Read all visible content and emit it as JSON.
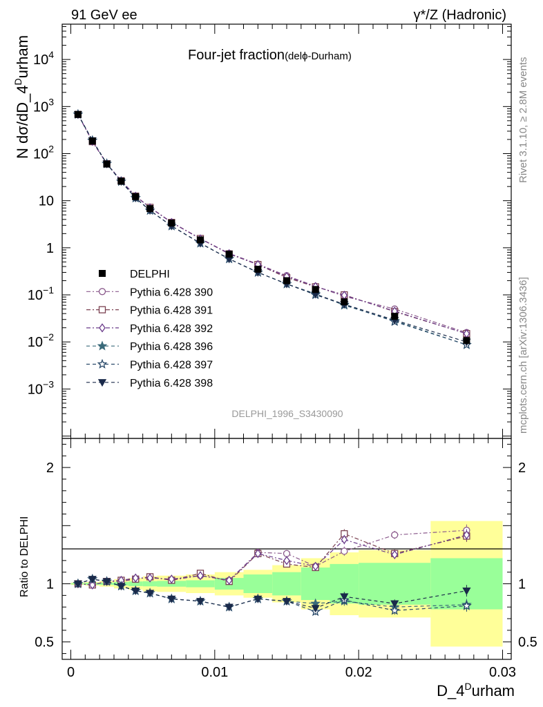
{
  "header": {
    "left_label": "91 GeV ee",
    "right_label": "γ*/Z (Hadronic)"
  },
  "side_labels": {
    "rivet": "Rivet 3.1.10, ≥ 2.8M events",
    "mcplots": "mcplots.cern.ch [arXiv:1306.3436]"
  },
  "analysis_id": "DELPHI_1996_S3430090",
  "chart_data": [
    {
      "panel": "main",
      "type": "scatter",
      "title": "Four-jet fraction",
      "title_suffix": "(delϕ-Durham)",
      "ylabel_main": "N dσ/dD_4",
      "ylabel_sup": "D",
      "ylabel_end": "urham",
      "xlabel_main": "D_4",
      "xlabel_sup": "D",
      "xlabel_end": "urham",
      "x_range": [
        -0.0006,
        0.0306
      ],
      "y_range_log10": [
        -4.05,
        4.75
      ],
      "y_scale": "log",
      "y_tick_labels": [
        {
          "value": 10000,
          "base": "10",
          "exp": "4"
        },
        {
          "value": 1000,
          "base": "10",
          "exp": "3"
        },
        {
          "value": 100,
          "base": "10",
          "exp": "2"
        },
        {
          "value": 10,
          "base": "10",
          "exp": ""
        },
        {
          "value": 1,
          "base": "1",
          "exp": ""
        },
        {
          "value": 0.1,
          "base": "10",
          "exp": "−1"
        },
        {
          "value": 0.01,
          "base": "10",
          "exp": "−2"
        },
        {
          "value": 0.001,
          "base": "10",
          "exp": "−3"
        }
      ],
      "x": [
        0.0005,
        0.0015,
        0.0025,
        0.0035,
        0.0045,
        0.0055,
        0.007,
        0.009,
        0.011,
        0.013,
        0.015,
        0.017,
        0.019,
        0.0225,
        0.0275
      ],
      "data": {
        "name": "DELPHI",
        "values": [
          680,
          185,
          60,
          26,
          12.2,
          6.8,
          3.35,
          1.47,
          0.73,
          0.35,
          0.2,
          0.13,
          0.071,
          0.035,
          0.0107
        ]
      },
      "legend_placement": "left-middle",
      "series": [
        {
          "name": "Pythia 6.428 390",
          "marker": "circle-open",
          "color": "#8b5a8c",
          "dash": "6,3,2,3",
          "values": [
            680,
            182,
            61,
            26.5,
            12.5,
            7.2,
            3.5,
            1.57,
            0.76,
            0.45,
            0.255,
            0.152,
            0.093,
            0.05,
            0.0158
          ]
        },
        {
          "name": "Pythia 6.428 391",
          "marker": "square-open",
          "color": "#7a4050",
          "dash": "6,3,2,3",
          "values": [
            680,
            180,
            61,
            26.5,
            12.5,
            7.2,
            3.45,
            1.57,
            0.74,
            0.44,
            0.232,
            0.148,
            0.1,
            0.044,
            0.015
          ]
        },
        {
          "name": "Pythia 6.428 392",
          "marker": "diamond-open",
          "color": "#6a3a8a",
          "dash": "6,3,2,3",
          "values": [
            680,
            182,
            61,
            26.5,
            12.5,
            7.1,
            3.45,
            1.55,
            0.75,
            0.44,
            0.245,
            0.15,
            0.098,
            0.045,
            0.015
          ]
        },
        {
          "name": "Pythia 6.428 396",
          "marker": "star-filled",
          "color": "#3a6a7a",
          "dash": "5,4",
          "values": [
            680,
            190,
            61,
            25.5,
            11.4,
            6.2,
            2.9,
            1.25,
            0.58,
            0.3,
            0.17,
            0.105,
            0.06,
            0.028,
            0.0087
          ]
        },
        {
          "name": "Pythia 6.428 397",
          "marker": "star-open",
          "color": "#2a4a6a",
          "dash": "5,4",
          "values": [
            680,
            190,
            61,
            25.5,
            11.4,
            6.2,
            2.9,
            1.25,
            0.58,
            0.3,
            0.17,
            0.1,
            0.062,
            0.027,
            0.0087
          ]
        },
        {
          "name": "Pythia 6.428 398",
          "marker": "triangle-down-filled",
          "color": "#1a2a4a",
          "dash": "5,4",
          "values": [
            680,
            190,
            61,
            25.5,
            11.4,
            6.2,
            2.9,
            1.25,
            0.58,
            0.3,
            0.17,
            0.103,
            0.063,
            0.029,
            0.01
          ]
        }
      ]
    },
    {
      "panel": "ratio",
      "type": "scatter",
      "ylabel": "Ratio to DELPHI",
      "x_range": [
        -0.0006,
        0.0306
      ],
      "y_range": [
        0.35,
        2.25
      ],
      "y_tick_labels": [
        {
          "value": 0.5,
          "label": "0.5"
        },
        {
          "value": 1,
          "label": "1"
        },
        {
          "value": 2,
          "label": "2"
        }
      ],
      "x_tick_labels": [
        {
          "value": 0,
          "label": "0"
        },
        {
          "value": 0.01,
          "label": "0.01"
        },
        {
          "value": 0.02,
          "label": "0.02"
        },
        {
          "value": 0.03,
          "label": "0.03"
        }
      ],
      "bins": [
        {
          "lo": 0,
          "hi": 0.001,
          "stat": 0.005,
          "tot": 0.01
        },
        {
          "lo": 0.001,
          "hi": 0.002,
          "stat": 0.008,
          "tot": 0.015
        },
        {
          "lo": 0.002,
          "hi": 0.003,
          "stat": 0.01,
          "tot": 0.025
        },
        {
          "lo": 0.003,
          "hi": 0.004,
          "stat": 0.015,
          "tot": 0.04
        },
        {
          "lo": 0.004,
          "hi": 0.005,
          "stat": 0.02,
          "tot": 0.05
        },
        {
          "lo": 0.005,
          "hi": 0.006,
          "stat": 0.022,
          "tot": 0.065
        },
        {
          "lo": 0.006,
          "hi": 0.008,
          "stat": 0.025,
          "tot": 0.07
        },
        {
          "lo": 0.008,
          "hi": 0.01,
          "stat": 0.03,
          "tot": 0.08
        },
        {
          "lo": 0.01,
          "hi": 0.012,
          "stat": 0.05,
          "tot": 0.1
        },
        {
          "lo": 0.012,
          "hi": 0.014,
          "stat": 0.08,
          "tot": 0.12
        },
        {
          "lo": 0.014,
          "hi": 0.016,
          "stat": 0.1,
          "tot": 0.16
        },
        {
          "lo": 0.016,
          "hi": 0.018,
          "stat": 0.14,
          "tot": 0.22
        },
        {
          "lo": 0.018,
          "hi": 0.02,
          "stat": 0.17,
          "tot": 0.27
        },
        {
          "lo": 0.02,
          "hi": 0.025,
          "stat": 0.18,
          "tot": 0.29
        },
        {
          "lo": 0.025,
          "hi": 0.03,
          "stat": 0.22,
          "tot": 0.54
        }
      ],
      "series": [
        {
          "name": "Pythia 6.428 390",
          "values": [
            1.0,
            0.99,
            1.02,
            1.02,
            1.04,
            1.06,
            1.03,
            1.07,
            1.03,
            1.27,
            1.26,
            1.15,
            1.28,
            1.42,
            1.46
          ]
        },
        {
          "name": "Pythia 6.428 391",
          "values": [
            1.0,
            0.99,
            1.02,
            1.03,
            1.04,
            1.06,
            1.03,
            1.09,
            1.02,
            1.26,
            1.17,
            1.14,
            1.43,
            1.26,
            1.41
          ]
        },
        {
          "name": "Pythia 6.428 392",
          "values": [
            1.0,
            0.99,
            1.02,
            1.03,
            1.05,
            1.05,
            1.04,
            1.07,
            1.03,
            1.26,
            1.2,
            1.15,
            1.38,
            1.25,
            1.42
          ]
        },
        {
          "name": "Pythia 6.428 396",
          "values": [
            1.0,
            1.04,
            1.02,
            0.98,
            0.94,
            0.92,
            0.87,
            0.85,
            0.8,
            0.87,
            0.85,
            0.83,
            0.85,
            0.8,
            0.82
          ]
        },
        {
          "name": "Pythia 6.428 397",
          "values": [
            1.0,
            1.04,
            1.02,
            0.98,
            0.94,
            0.92,
            0.87,
            0.85,
            0.8,
            0.87,
            0.85,
            0.76,
            0.86,
            0.77,
            0.81
          ]
        },
        {
          "name": "Pythia 6.428 398",
          "values": [
            1.0,
            1.04,
            1.02,
            0.98,
            0.94,
            0.92,
            0.87,
            0.85,
            0.8,
            0.87,
            0.85,
            0.79,
            0.89,
            0.83,
            0.94
          ]
        }
      ],
      "band_colors": {
        "total": "#ffff99",
        "stat": "#99ff99"
      }
    }
  ]
}
